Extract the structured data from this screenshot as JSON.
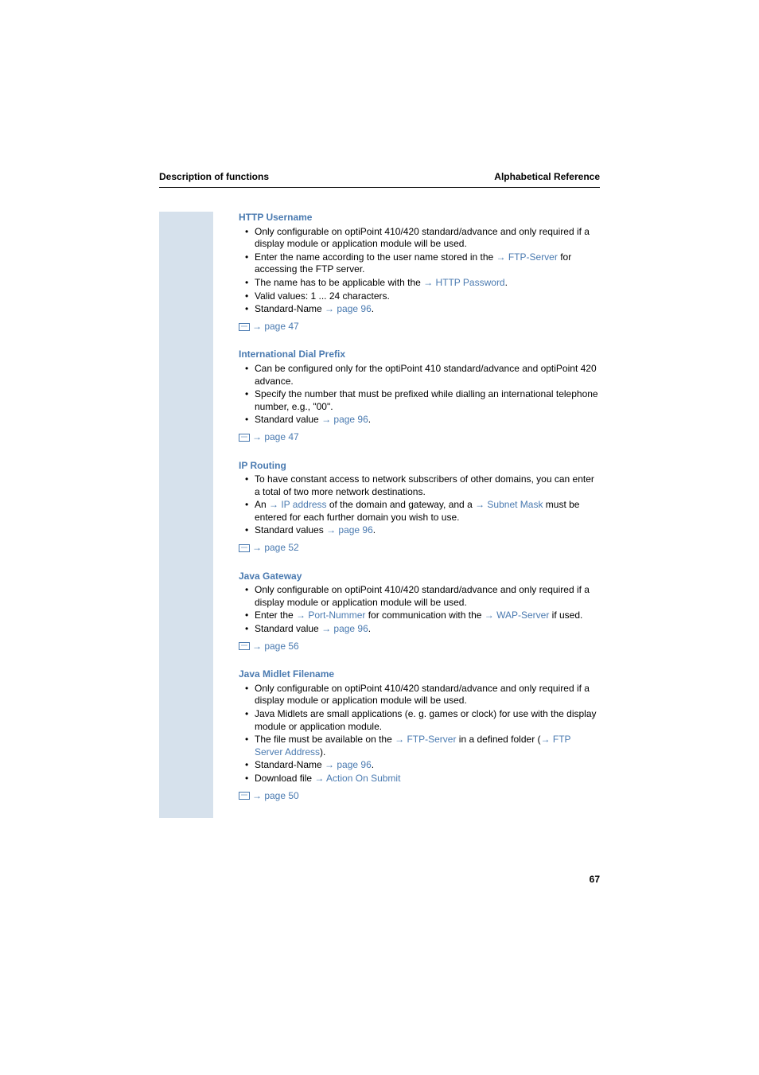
{
  "header": {
    "left": "Description of functions",
    "right": "Alphabetical Reference"
  },
  "sections": [
    {
      "title": "HTTP Username",
      "bullets": [
        {
          "pre": "Only configurable on optiPoint 410/420 standard/advance and only required if a display module or application module will be used."
        },
        {
          "pre": "Enter the name according to the user name stored in the ",
          "arrow": "→",
          "link": " FTP-Server",
          "post": " for accessing the FTP server."
        },
        {
          "pre": "The name has to be applicable with the ",
          "arrow": "→",
          "link": " HTTP Password",
          "post": "."
        },
        {
          "pre": "Valid values: 1 ... 24 characters."
        },
        {
          "pre": "Standard-Name ",
          "arrow": "→",
          "link": " page 96",
          "post": "."
        }
      ],
      "ref": {
        "arrow": "→",
        "text": " page 47"
      }
    },
    {
      "title": "International Dial Prefix",
      "bullets": [
        {
          "pre": "Can be configured only for the optiPoint 410 standard/advance and optiPoint 420 advance."
        },
        {
          "pre": "Specify the number that must be prefixed while dialling an international telephone number, e.g., \"00\"."
        },
        {
          "pre": "Standard value ",
          "arrow": "→",
          "link": " page 96",
          "post": "."
        }
      ],
      "ref": {
        "arrow": "→",
        "text": " page 47"
      }
    },
    {
      "title": "IP Routing",
      "bullets": [
        {
          "pre": "To have constant access to network subscribers of other domains, you can enter a total of two more network destinations."
        },
        {
          "pre": "An ",
          "arrow": "→",
          "link": " IP address",
          "mid": " of the domain and gateway, and a ",
          "arrow2": "→",
          "link2": " Subnet Mask",
          "post": " must be entered for each further domain you wish to use."
        },
        {
          "pre": "Standard values ",
          "arrow": "→",
          "link": " page 96",
          "post": "."
        }
      ],
      "ref": {
        "arrow": "→",
        "text": " page 52"
      }
    },
    {
      "title": "Java Gateway",
      "bullets": [
        {
          "pre": "Only configurable on optiPoint 410/420 standard/advance and only required if a display module or application module will be used."
        },
        {
          "pre": "Enter the ",
          "arrow": "→",
          "link": " Port-Nummer",
          "mid": " for communication with the ",
          "arrow2": "→",
          "link2": " WAP-Server",
          "post": " if used."
        },
        {
          "pre": "Standard value ",
          "arrow": "→",
          "link": " page 96",
          "post": "."
        }
      ],
      "ref": {
        "arrow": "→",
        "text": " page 56"
      }
    },
    {
      "title": "Java Midlet Filename",
      "bullets": [
        {
          "pre": "Only configurable on optiPoint 410/420 standard/advance and only required if a display module or application module will be used."
        },
        {
          "pre": "Java Midlets are small applications (e. g. games or clock) for use with the display module or application module."
        },
        {
          "pre": "The file must be available on the ",
          "arrow": "→",
          "link": " FTP-Server",
          "mid": " in a defined folder (",
          "arrow2": "→",
          "link2": " FTP Server Address",
          "post": ")."
        },
        {
          "pre": "Standard-Name ",
          "arrow": "→",
          "link": " page 96",
          "post": "."
        },
        {
          "pre": "Download file ",
          "arrow": "→",
          "link": " Action On Submit"
        }
      ],
      "ref": {
        "arrow": "→",
        "text": " page 50"
      }
    }
  ],
  "pageNumber": "67",
  "colors": {
    "link": "#4a7ab0",
    "sidebar": "#d6e1ec",
    "text": "#000000"
  }
}
